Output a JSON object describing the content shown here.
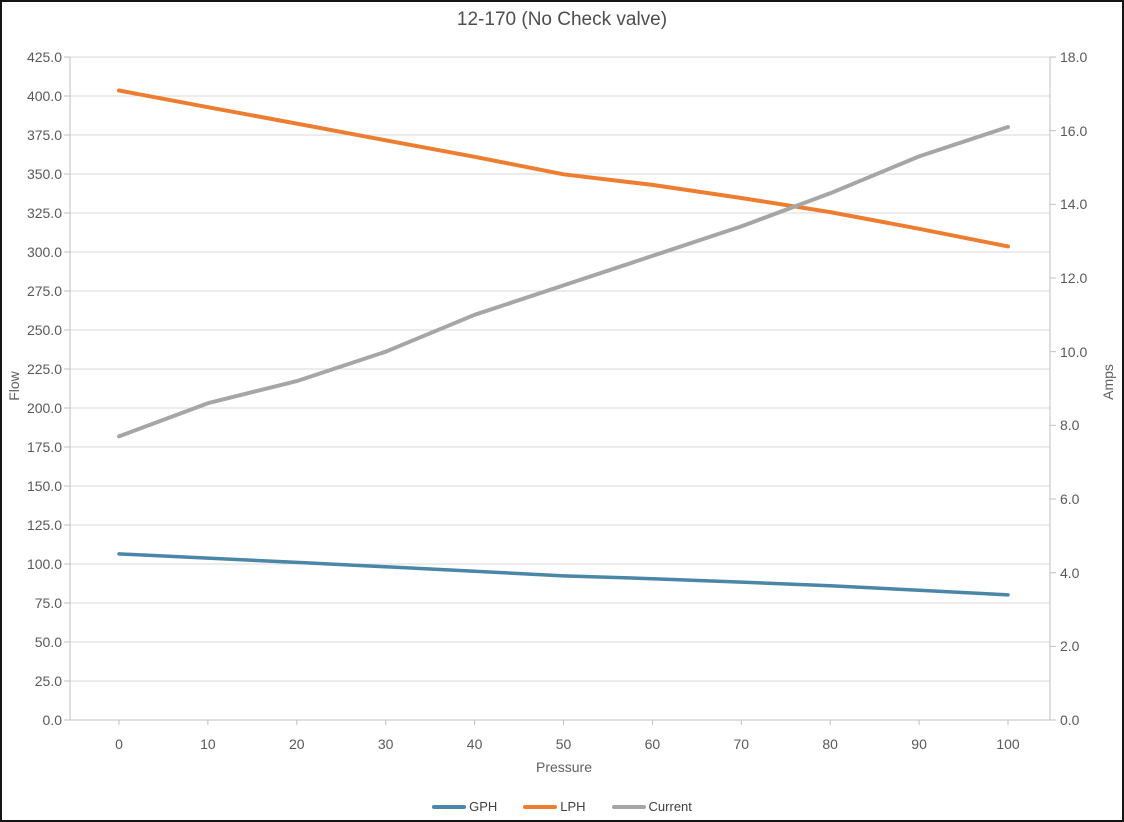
{
  "chart_data": {
    "type": "line",
    "title": "12-170 (No Check valve)",
    "xlabel": "Pressure",
    "ylabel_left": "Flow",
    "ylabel_right": "Amps",
    "grid": true,
    "legend_position": "bottom",
    "x": [
      0,
      10,
      20,
      30,
      40,
      50,
      60,
      70,
      80,
      90,
      100
    ],
    "x_ticks": [
      "0",
      "10",
      "20",
      "30",
      "40",
      "50",
      "60",
      "70",
      "80",
      "90",
      "100"
    ],
    "left_axis": {
      "min": 0,
      "max": 425,
      "step": 25,
      "ticks": [
        "0.0",
        "25.0",
        "50.0",
        "75.0",
        "100.0",
        "125.0",
        "150.0",
        "175.0",
        "200.0",
        "225.0",
        "250.0",
        "275.0",
        "300.0",
        "325.0",
        "350.0",
        "375.0",
        "400.0",
        "425.0"
      ]
    },
    "right_axis": {
      "min": 0,
      "max": 18,
      "step": 2,
      "ticks": [
        "0.0",
        "2.0",
        "4.0",
        "6.0",
        "8.0",
        "10.0",
        "12.0",
        "14.0",
        "16.0",
        "18.0"
      ]
    },
    "series": [
      {
        "name": "GPH",
        "axis": "left",
        "color": "#4A86A8",
        "values": [
          106.5,
          103.8,
          101.0,
          98.2,
          95.4,
          92.4,
          90.6,
          88.4,
          86.0,
          83.2,
          80.2
        ]
      },
      {
        "name": "LPH",
        "axis": "left",
        "color": "#ED7D31",
        "values": [
          403.5,
          392.8,
          382.3,
          371.6,
          361.0,
          349.8,
          343.0,
          334.6,
          325.6,
          314.9,
          303.6
        ]
      },
      {
        "name": "Current",
        "axis": "right",
        "color": "#A6A6A6",
        "values": [
          7.7,
          8.6,
          9.2,
          10.0,
          11.0,
          11.8,
          12.6,
          13.4,
          14.3,
          15.3,
          16.1
        ]
      }
    ],
    "colors": {
      "grid": "#D9D9D9",
      "axis": "#BFBFBF",
      "tick_text": "#595959",
      "title_text": "#4D4D4D",
      "legend_text": "#404040",
      "background": "#FFFFFF",
      "frame_border": "#141414"
    }
  }
}
